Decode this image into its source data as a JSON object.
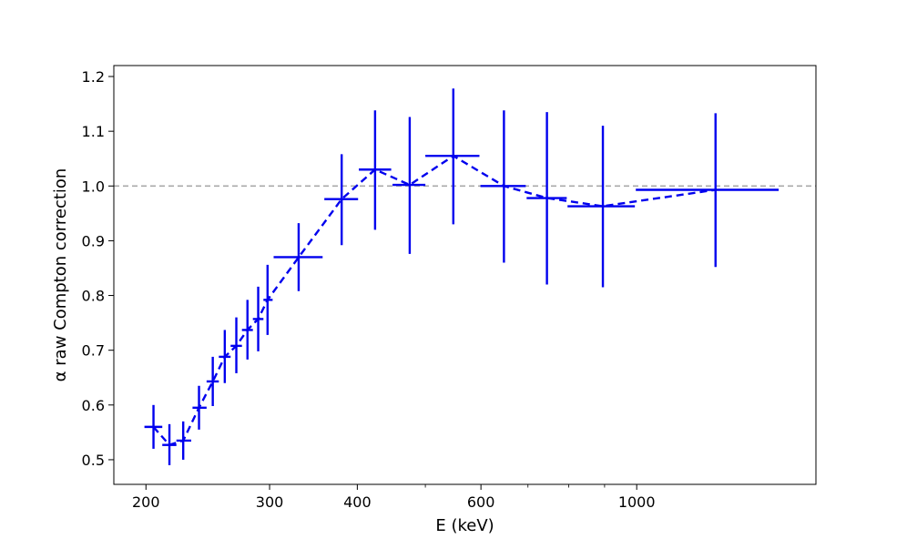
{
  "chart_data": {
    "type": "scatter",
    "xlabel": "E (keV)",
    "ylabel": "α raw Compton correction",
    "x_scale": "log",
    "xlim": [
      180,
      1800
    ],
    "ylim": [
      0.455,
      1.22
    ],
    "x_major_ticks": [
      200,
      300,
      400,
      600,
      1000
    ],
    "x_major_tick_labels": [
      "200",
      "300",
      "400",
      "600",
      "1000"
    ],
    "x_minor_ticks": [
      500,
      700,
      800,
      900
    ],
    "y_ticks": [
      0.5,
      0.6,
      0.7,
      0.8,
      0.9,
      1.0,
      1.1,
      1.2
    ],
    "y_tick_labels": [
      "0.5",
      "0.6",
      "0.7",
      "0.8",
      "0.9",
      "1.0",
      "1.1",
      "1.2"
    ],
    "grid": false,
    "reference_line": {
      "y": 1.0,
      "style": "dashed",
      "color": "#aaaaaa"
    },
    "series": [
      {
        "color": "#0000ee",
        "line_style": "dashed",
        "points": [
          {
            "x": 205,
            "y": 0.56,
            "xlo": 199,
            "xhi": 211,
            "ylo": 0.52,
            "yhi": 0.6
          },
          {
            "x": 216,
            "y": 0.527,
            "xlo": 211,
            "xhi": 221,
            "ylo": 0.49,
            "yhi": 0.565
          },
          {
            "x": 226,
            "y": 0.535,
            "xlo": 221,
            "xhi": 232,
            "ylo": 0.5,
            "yhi": 0.57
          },
          {
            "x": 238,
            "y": 0.595,
            "xlo": 233,
            "xhi": 244,
            "ylo": 0.555,
            "yhi": 0.635
          },
          {
            "x": 249,
            "y": 0.643,
            "xlo": 244,
            "xhi": 254,
            "ylo": 0.598,
            "yhi": 0.688
          },
          {
            "x": 259,
            "y": 0.688,
            "xlo": 254,
            "xhi": 264,
            "ylo": 0.64,
            "yhi": 0.737
          },
          {
            "x": 269,
            "y": 0.708,
            "xlo": 264,
            "xhi": 274,
            "ylo": 0.658,
            "yhi": 0.76
          },
          {
            "x": 279,
            "y": 0.737,
            "xlo": 274,
            "xhi": 284,
            "ylo": 0.683,
            "yhi": 0.792
          },
          {
            "x": 289,
            "y": 0.757,
            "xlo": 284,
            "xhi": 294,
            "ylo": 0.698,
            "yhi": 0.816
          },
          {
            "x": 298,
            "y": 0.792,
            "xlo": 294,
            "xhi": 303,
            "ylo": 0.728,
            "yhi": 0.856
          },
          {
            "x": 330,
            "y": 0.87,
            "xlo": 304,
            "xhi": 357,
            "ylo": 0.808,
            "yhi": 0.932
          },
          {
            "x": 380,
            "y": 0.976,
            "xlo": 359,
            "xhi": 401,
            "ylo": 0.892,
            "yhi": 1.058
          },
          {
            "x": 424,
            "y": 1.03,
            "xlo": 402,
            "xhi": 447,
            "ylo": 0.92,
            "yhi": 1.138
          },
          {
            "x": 475,
            "y": 1.002,
            "xlo": 449,
            "xhi": 500,
            "ylo": 0.876,
            "yhi": 1.126
          },
          {
            "x": 548,
            "y": 1.055,
            "xlo": 500,
            "xhi": 597,
            "ylo": 0.93,
            "yhi": 1.178
          },
          {
            "x": 647,
            "y": 1.0,
            "xlo": 599,
            "xhi": 695,
            "ylo": 0.86,
            "yhi": 1.138
          },
          {
            "x": 745,
            "y": 0.978,
            "xlo": 697,
            "xhi": 795,
            "ylo": 0.82,
            "yhi": 1.135
          },
          {
            "x": 895,
            "y": 0.963,
            "xlo": 797,
            "xhi": 994,
            "ylo": 0.815,
            "yhi": 1.11
          },
          {
            "x": 1295,
            "y": 0.993,
            "xlo": 997,
            "xhi": 1593,
            "ylo": 0.852,
            "yhi": 1.133
          }
        ]
      }
    ]
  }
}
